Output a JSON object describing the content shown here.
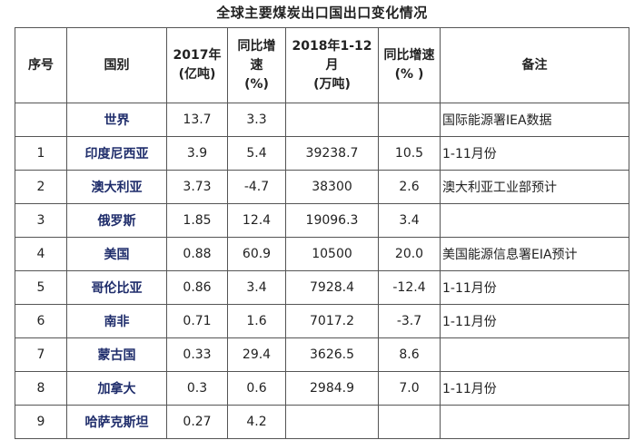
{
  "title": "全球主要煤炭出口国出口变化情况",
  "headers": {
    "seq": "序号",
    "country": "国别",
    "y2017_line1": "2017年",
    "y2017_line2": "(亿吨)",
    "yoy1_line1": "同比增",
    "yoy1_line2": "速",
    "yoy1_line3": "(%)",
    "y2018_line1": "2018年1-12",
    "y2018_line2": "月",
    "y2018_line3": "(万吨)",
    "yoy2_line1": "同比增速",
    "yoy2_line2": "(%  )",
    "note": "备注"
  },
  "rows": [
    {
      "seq": "",
      "country": "世界",
      "v2017": "13.7",
      "yoy2017": "3.3",
      "v2018": "",
      "yoy2018": "",
      "note": "国际能源署IEA数据"
    },
    {
      "seq": "1",
      "country": "印度尼西亚",
      "v2017": "3.9",
      "yoy2017": "5.4",
      "v2018": "39238.7",
      "yoy2018": "10.5",
      "note": "1-11月份"
    },
    {
      "seq": "2",
      "country": "澳大利亚",
      "v2017": "3.73",
      "yoy2017": "-4.7",
      "v2018": "38300",
      "yoy2018": "2.6",
      "note": "澳大利亚工业部预计"
    },
    {
      "seq": "3",
      "country": "俄罗斯",
      "v2017": "1.85",
      "yoy2017": "12.4",
      "v2018": "19096.3",
      "yoy2018": "3.4",
      "note": ""
    },
    {
      "seq": "4",
      "country": "美国",
      "v2017": "0.88",
      "yoy2017": "60.9",
      "v2018": "10500",
      "yoy2018": "20.0",
      "note": "美国能源信息署EIA预计"
    },
    {
      "seq": "5",
      "country": "哥伦比亚",
      "v2017": "0.86",
      "yoy2017": "3.4",
      "v2018": "7928.4",
      "yoy2018": "-12.4",
      "note": "1-11月份"
    },
    {
      "seq": "6",
      "country": "南非",
      "v2017": "0.71",
      "yoy2017": "1.6",
      "v2018": "7017.2",
      "yoy2018": "-3.7",
      "note": "1-11月份"
    },
    {
      "seq": "7",
      "country": "蒙古国",
      "v2017": "0.33",
      "yoy2017": "29.4",
      "v2018": "3626.5",
      "yoy2018": "8.6",
      "note": ""
    },
    {
      "seq": "8",
      "country": "加拿大",
      "v2017": "0.3",
      "yoy2017": "0.6",
      "v2018": "2984.9",
      "yoy2018": "7.0",
      "note": "1-11月份"
    },
    {
      "seq": "9",
      "country": "哈萨克斯坦",
      "v2017": "0.27",
      "yoy2017": "4.2",
      "v2018": "",
      "yoy2018": "",
      "note": ""
    }
  ]
}
